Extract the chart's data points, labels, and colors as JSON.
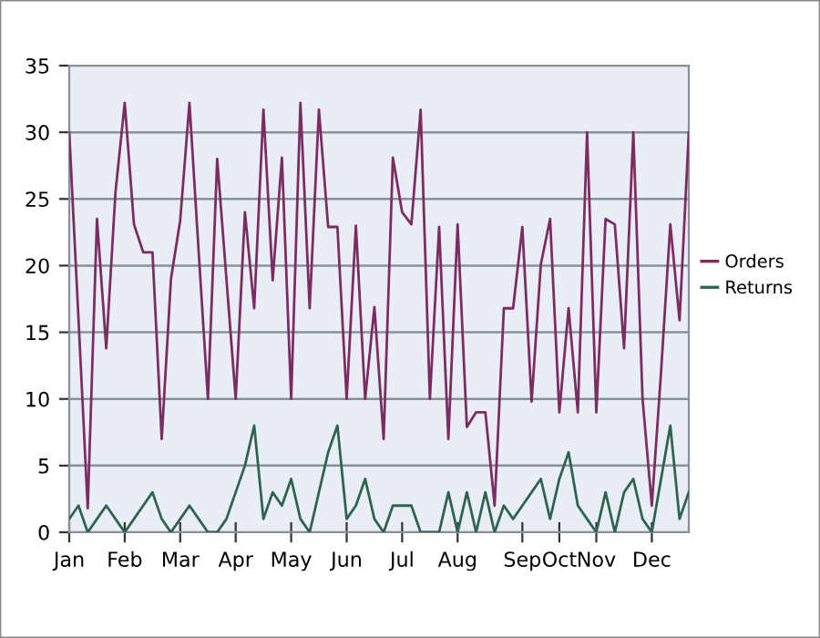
{
  "chart_data": {
    "type": "line",
    "categories": [
      "Jan",
      null,
      null,
      null,
      null,
      null,
      "Feb",
      null,
      null,
      null,
      null,
      null,
      "Mar",
      null,
      null,
      null,
      null,
      null,
      "Apr",
      null,
      null,
      null,
      null,
      null,
      "May",
      null,
      null,
      null,
      null,
      null,
      "Jun",
      null,
      null,
      null,
      null,
      null,
      "Jul",
      null,
      null,
      null,
      null,
      null,
      "Aug",
      null,
      null,
      null,
      null,
      null,
      null,
      "Sep",
      null,
      null,
      null,
      "Oct",
      null,
      null,
      null,
      "Nov",
      null,
      null,
      null,
      null,
      null,
      "Dec",
      null,
      null,
      null,
      null
    ],
    "series": [
      {
        "name": "Orders",
        "color": "#7b2d63",
        "values": [
          30,
          16,
          1.8,
          23.5,
          13.8,
          25.5,
          32.2,
          23.1,
          21,
          21,
          7,
          19,
          23.4,
          32.2,
          21,
          10,
          28,
          19,
          10,
          24,
          16.8,
          31.7,
          18.9,
          28.1,
          10,
          32.2,
          16.8,
          31.7,
          22.9,
          22.9,
          10,
          23,
          10,
          16.9,
          7,
          28.1,
          24,
          23.1,
          31.7,
          10,
          22.9,
          7,
          23.1,
          7.9,
          9,
          9,
          2,
          16.8,
          16.8,
          22.9,
          9.8,
          20.1,
          23.5,
          9,
          16.8,
          9,
          30,
          9,
          23.5,
          23.1,
          13.8,
          30,
          10,
          2,
          12,
          23.1,
          15.9,
          30
        ]
      },
      {
        "name": "Returns",
        "color": "#2f6350",
        "values": [
          1,
          2,
          0,
          1,
          2,
          1,
          0,
          1,
          2,
          3,
          1,
          0,
          1,
          2,
          1,
          0,
          0,
          1,
          3,
          5,
          8,
          1,
          3,
          2,
          4,
          1,
          0,
          3,
          6,
          8,
          1,
          2,
          4,
          1,
          0,
          2,
          2,
          2,
          0,
          0,
          0,
          3,
          0,
          3,
          0,
          3,
          0,
          2,
          1,
          2,
          3,
          4,
          1,
          4,
          6,
          2,
          1,
          0,
          3,
          0,
          3,
          4,
          1,
          0,
          4,
          8,
          1,
          3
        ]
      }
    ],
    "ylim": [
      0,
      35
    ],
    "yticks": [
      0,
      5,
      10,
      15,
      20,
      25,
      30,
      35
    ],
    "grid": "y",
    "legend": "right",
    "marker": "none",
    "line_style": "solid"
  }
}
